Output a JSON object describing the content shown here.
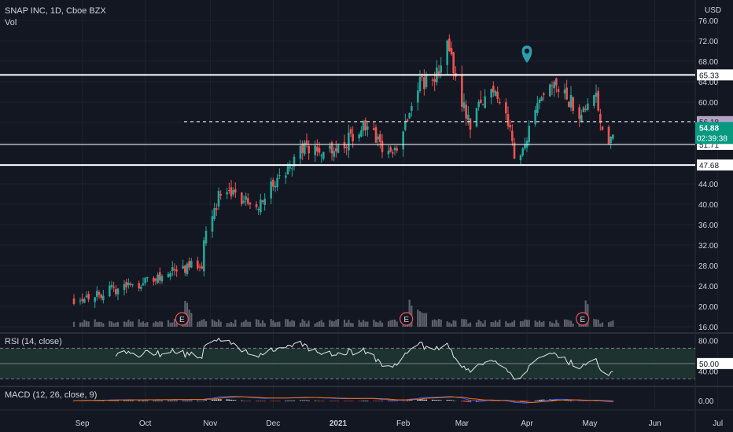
{
  "header": {
    "symbol": "SNAP INC, 1D, Cboe BZX",
    "volume_label": "Vol",
    "currency": "USD"
  },
  "chart_data": [
    {
      "type": "candlestick",
      "title": "SNAP INC, 1D, Cboe BZX",
      "ylabel": "USD",
      "y_ticks": [
        "76.00",
        "72.00",
        "68.00",
        "64.00",
        "60.00",
        "56.00",
        "52.00",
        "48.00",
        "44.00",
        "40.00",
        "36.00",
        "32.00",
        "28.00",
        "24.00",
        "20.00",
        "16.00"
      ],
      "ylim": [
        16,
        78
      ],
      "x_ticks": [
        "Sep",
        "Oct",
        "Nov",
        "Dec",
        "2021",
        "Feb",
        "Mar",
        "Apr",
        "May",
        "Jun",
        "Jul"
      ],
      "horizontal_levels": [
        {
          "label": "65.33",
          "value": 65.33,
          "style": "solid"
        },
        {
          "label": "56.18",
          "value": 56.18,
          "style": "dashed"
        },
        {
          "label": "51.71",
          "value": 51.71,
          "style": "solid"
        },
        {
          "label": "47.68",
          "value": 47.68,
          "style": "solid"
        }
      ],
      "last_price": {
        "label": "54.88",
        "countdown": "02:39:38",
        "value": 54.88
      },
      "earnings_markers": [
        "E",
        "E",
        "E"
      ],
      "price_path": [
        [
          "2020-08-28",
          21.5
        ],
        [
          "2020-09-10",
          22.6
        ],
        [
          "2020-09-25",
          24.2
        ],
        [
          "2020-10-07",
          25.6
        ],
        [
          "2020-10-16",
          27.2
        ],
        [
          "2020-10-28",
          28.4
        ],
        [
          "2020-10-29",
          33.6
        ],
        [
          "2020-11-04",
          40.2
        ],
        [
          "2020-11-06",
          43.0
        ],
        [
          "2020-11-13",
          41.2
        ],
        [
          "2020-11-24",
          40.3
        ],
        [
          "2020-12-01",
          44.0
        ],
        [
          "2020-12-08",
          46.5
        ],
        [
          "2020-12-14",
          51.0
        ],
        [
          "2020-12-23",
          50.6
        ],
        [
          "2021-01-04",
          51.8
        ],
        [
          "2021-01-12",
          55.0
        ],
        [
          "2021-01-20",
          52.5
        ],
        [
          "2021-01-27",
          49.2
        ],
        [
          "2021-02-03",
          57.5
        ],
        [
          "2021-02-09",
          64.5
        ],
        [
          "2021-02-15",
          63.2
        ],
        [
          "2021-02-22",
          71.2
        ],
        [
          "2021-02-24",
          68.0
        ],
        [
          "2021-03-01",
          60.5
        ],
        [
          "2021-03-05",
          55.8
        ],
        [
          "2021-03-10",
          59.5
        ],
        [
          "2021-03-16",
          63.0
        ],
        [
          "2021-03-22",
          58.0
        ],
        [
          "2021-03-26",
          49.8
        ],
        [
          "2021-03-31",
          51.8
        ],
        [
          "2021-04-05",
          57.5
        ],
        [
          "2021-04-12",
          63.0
        ],
        [
          "2021-04-19",
          61.2
        ],
        [
          "2021-04-26",
          58.0
        ],
        [
          "2021-05-03",
          62.8
        ],
        [
          "2021-05-07",
          55.0
        ],
        [
          "2021-05-10",
          53.2
        ],
        [
          "2021-05-12",
          54.88
        ]
      ]
    },
    {
      "type": "volume",
      "title": "Vol"
    },
    {
      "type": "line",
      "title": "RSI (14, close)",
      "y_ticks": [
        "80.00",
        "40.00"
      ],
      "levels": [
        70,
        50,
        30
      ],
      "last_label": "50.00",
      "ylim": [
        20,
        90
      ]
    },
    {
      "type": "histogram",
      "title": "MACD (12, 26, close, 9)",
      "y_ticks": [
        "0.00"
      ]
    }
  ],
  "colors": {
    "background": "#131722",
    "grid": "#1e222d",
    "text": "#d1d4dc",
    "up": "#26a69a",
    "down": "#ef5350",
    "volume": "#787b86",
    "last_price_bg": "#089981",
    "dashed_level_bg": "#b2a3c6",
    "rsi_band": "#1f3b34",
    "marker": "#2a9fb0"
  }
}
